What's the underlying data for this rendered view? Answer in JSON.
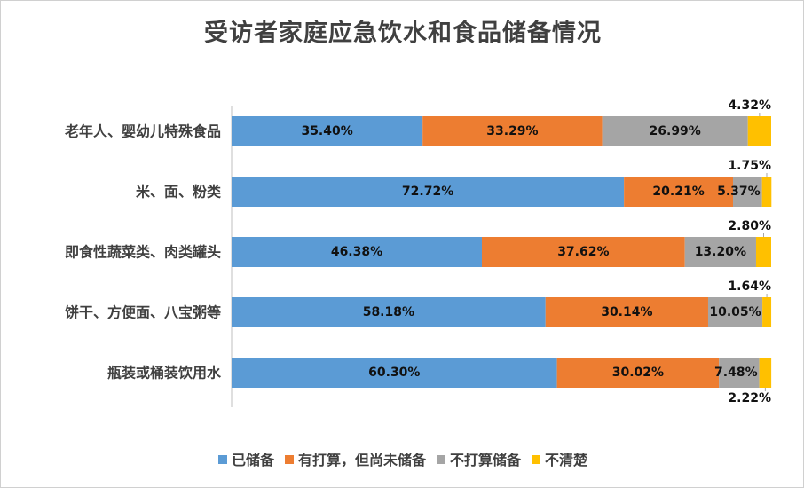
{
  "chart_data": {
    "type": "bar",
    "orientation": "horizontal",
    "stacked": true,
    "title": "受访者家庭应急饮水和食品储备情况",
    "categories": [
      "老年人、婴幼儿特殊食品",
      "米、面、粉类",
      "即食性蔬菜类、肉类罐头",
      "饼干、方便面、八宝粥等",
      "瓶装或桶装饮用水"
    ],
    "series": [
      {
        "name": "已储备",
        "color": "#5b9bd5",
        "values": [
          35.4,
          72.72,
          46.38,
          58.18,
          60.3
        ],
        "labels": [
          "35.40%",
          "72.72%",
          "46.38%",
          "58.18%",
          "60.30%"
        ]
      },
      {
        "name": "有打算，但尚未储备",
        "color": "#ed7d31",
        "values": [
          33.29,
          20.21,
          37.62,
          30.14,
          30.02
        ],
        "labels": [
          "33.29%",
          "20.21%",
          "37.62%",
          "30.14%",
          "30.02%"
        ]
      },
      {
        "name": "不打算储备",
        "color": "#a5a5a5",
        "values": [
          26.99,
          5.37,
          13.2,
          10.05,
          7.48
        ],
        "labels": [
          "26.99%",
          "5.37%",
          "13.20%",
          "10.05%",
          "7.48%"
        ]
      },
      {
        "name": "不清楚",
        "color": "#ffc000",
        "values": [
          4.32,
          1.75,
          2.8,
          1.64,
          2.22
        ],
        "labels": [
          "4.32%",
          "1.75%",
          "2.80%",
          "1.64%",
          "2.22%"
        ]
      }
    ],
    "xlim": [
      0,
      100
    ],
    "grid": false,
    "legend_position": "bottom"
  }
}
